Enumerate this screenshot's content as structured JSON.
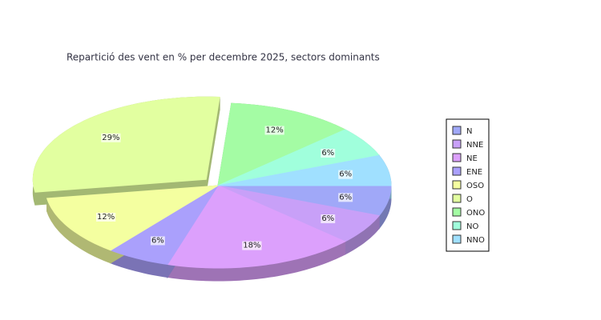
{
  "chart_data": {
    "type": "pie3d",
    "title": "Repartició des vent en % per decembre 2025, sectors dominants",
    "categories": [
      "N",
      "NNE",
      "NE",
      "ENE",
      "OSO",
      "O",
      "ONO",
      "NO",
      "NNO"
    ],
    "values": [
      6,
      6,
      18,
      6,
      12,
      29,
      12,
      6,
      6
    ],
    "value_labels": [
      "6%",
      "6%",
      "18%",
      "6%",
      "12%",
      "29%",
      "12%",
      "6%",
      "6%"
    ],
    "colors": [
      "#a0a8f8",
      "#c8a0f8",
      "#dca0fc",
      "#aaa0fc",
      "#f4ffa0",
      "#e2ffa0",
      "#a4fca4",
      "#a0ffdc",
      "#a0e0ff"
    ],
    "exploded": "O",
    "legend": "right"
  }
}
